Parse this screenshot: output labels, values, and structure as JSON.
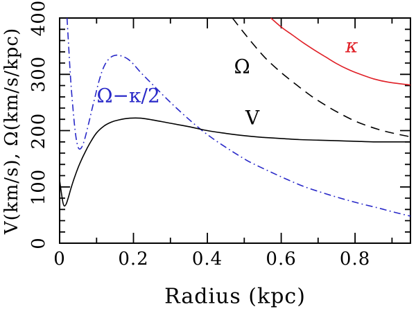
{
  "figure": {
    "background": "#ffffff",
    "frame_color": "#000000"
  },
  "chart_data": {
    "type": "line",
    "title": "",
    "xlabel": "Radius (kpc)",
    "ylabel": "V(km/s), Ω(km/s/kpc)",
    "xlim": [
      0,
      0.95
    ],
    "ylim": [
      0,
      400
    ],
    "grid": false,
    "legend_position": "none",
    "x_ticks": {
      "major": [
        0,
        0.2,
        0.4,
        0.6,
        0.8
      ],
      "labels": [
        "0",
        "0.2",
        "0.4",
        "0.6",
        "0.8"
      ],
      "minor": [
        0.1,
        0.3,
        0.5,
        0.7,
        0.9
      ]
    },
    "y_ticks": {
      "major": [
        0,
        100,
        200,
        300,
        400
      ],
      "labels": [
        "0",
        "100",
        "200",
        "300",
        "400"
      ],
      "minor": [
        20,
        40,
        60,
        80,
        120,
        140,
        160,
        180,
        220,
        240,
        260,
        280,
        320,
        340,
        360,
        380
      ]
    },
    "series": [
      {
        "name": "omega-minus-kappa-half",
        "label": "Ω−κ/2",
        "color": "#2828c8",
        "style": "dashdot",
        "points": [
          [
            0.02,
            400
          ],
          [
            0.024,
            355
          ],
          [
            0.028,
            310
          ],
          [
            0.032,
            272
          ],
          [
            0.036,
            240
          ],
          [
            0.04,
            212
          ],
          [
            0.044,
            190
          ],
          [
            0.048,
            175
          ],
          [
            0.052,
            168
          ],
          [
            0.057,
            168
          ],
          [
            0.063,
            175
          ],
          [
            0.07,
            190
          ],
          [
            0.078,
            211
          ],
          [
            0.087,
            236
          ],
          [
            0.097,
            263
          ],
          [
            0.107,
            289
          ],
          [
            0.117,
            309
          ],
          [
            0.127,
            322
          ],
          [
            0.14,
            331
          ],
          [
            0.155,
            334
          ],
          [
            0.17,
            332
          ],
          [
            0.185,
            327
          ],
          [
            0.2,
            318
          ],
          [
            0.22,
            303
          ],
          [
            0.25,
            283
          ],
          [
            0.28,
            263
          ],
          [
            0.31,
            244
          ],
          [
            0.35,
            220
          ],
          [
            0.39,
            198
          ],
          [
            0.43,
            179
          ],
          [
            0.47,
            162
          ],
          [
            0.51,
            146
          ],
          [
            0.56,
            130
          ],
          [
            0.61,
            115
          ],
          [
            0.66,
            101
          ],
          [
            0.71,
            90
          ],
          [
            0.76,
            80
          ],
          [
            0.81,
            71
          ],
          [
            0.86,
            63
          ],
          [
            0.9,
            56
          ],
          [
            0.95,
            48
          ]
        ]
      },
      {
        "name": "V",
        "label": "V",
        "color": "#000000",
        "style": "solid",
        "points": [
          [
            0.0,
            112
          ],
          [
            0.005,
            88
          ],
          [
            0.009,
            72
          ],
          [
            0.013,
            66
          ],
          [
            0.018,
            70
          ],
          [
            0.024,
            82
          ],
          [
            0.032,
            100
          ],
          [
            0.042,
            120
          ],
          [
            0.055,
            142
          ],
          [
            0.07,
            163
          ],
          [
            0.085,
            181
          ],
          [
            0.1,
            196
          ],
          [
            0.12,
            208
          ],
          [
            0.14,
            215
          ],
          [
            0.16,
            219
          ],
          [
            0.19,
            222
          ],
          [
            0.22,
            222
          ],
          [
            0.26,
            218
          ],
          [
            0.3,
            213
          ],
          [
            0.35,
            207
          ],
          [
            0.4,
            200
          ],
          [
            0.45,
            195
          ],
          [
            0.5,
            191
          ],
          [
            0.55,
            188
          ],
          [
            0.6,
            186
          ],
          [
            0.65,
            184
          ],
          [
            0.7,
            183
          ],
          [
            0.75,
            182
          ],
          [
            0.8,
            181
          ],
          [
            0.85,
            180
          ],
          [
            0.9,
            180
          ],
          [
            0.95,
            180
          ]
        ]
      },
      {
        "name": "omega",
        "label": "Ω",
        "color": "#000000",
        "style": "dashed",
        "points": [
          [
            0.468,
            400
          ],
          [
            0.5,
            373
          ],
          [
            0.53,
            349
          ],
          [
            0.56,
            327
          ],
          [
            0.6,
            303
          ],
          [
            0.64,
            282
          ],
          [
            0.68,
            262
          ],
          [
            0.72,
            245
          ],
          [
            0.76,
            230
          ],
          [
            0.8,
            217
          ],
          [
            0.84,
            207
          ],
          [
            0.88,
            199
          ],
          [
            0.92,
            193
          ],
          [
            0.95,
            189
          ]
        ]
      },
      {
        "name": "kappa",
        "label": "κ",
        "color": "#e01f26",
        "style": "solid",
        "points": [
          [
            0.572,
            400
          ],
          [
            0.6,
            384
          ],
          [
            0.63,
            370
          ],
          [
            0.66,
            356
          ],
          [
            0.69,
            343
          ],
          [
            0.72,
            331
          ],
          [
            0.75,
            319
          ],
          [
            0.78,
            309
          ],
          [
            0.81,
            301
          ],
          [
            0.85,
            292
          ],
          [
            0.89,
            286
          ],
          [
            0.95,
            281
          ]
        ]
      }
    ],
    "annotations": [
      {
        "text": "Ω−κ/2",
        "x": 0.186,
        "y": 262,
        "color": "#2828c8",
        "italic": false
      },
      {
        "text": "Ω",
        "x": 0.494,
        "y": 314,
        "color": "#000000",
        "italic": false
      },
      {
        "text": "V",
        "x": 0.522,
        "y": 223,
        "color": "#000000",
        "italic": false
      },
      {
        "text": "κ",
        "x": 0.791,
        "y": 351,
        "color": "#e01f26",
        "italic": true
      }
    ]
  }
}
